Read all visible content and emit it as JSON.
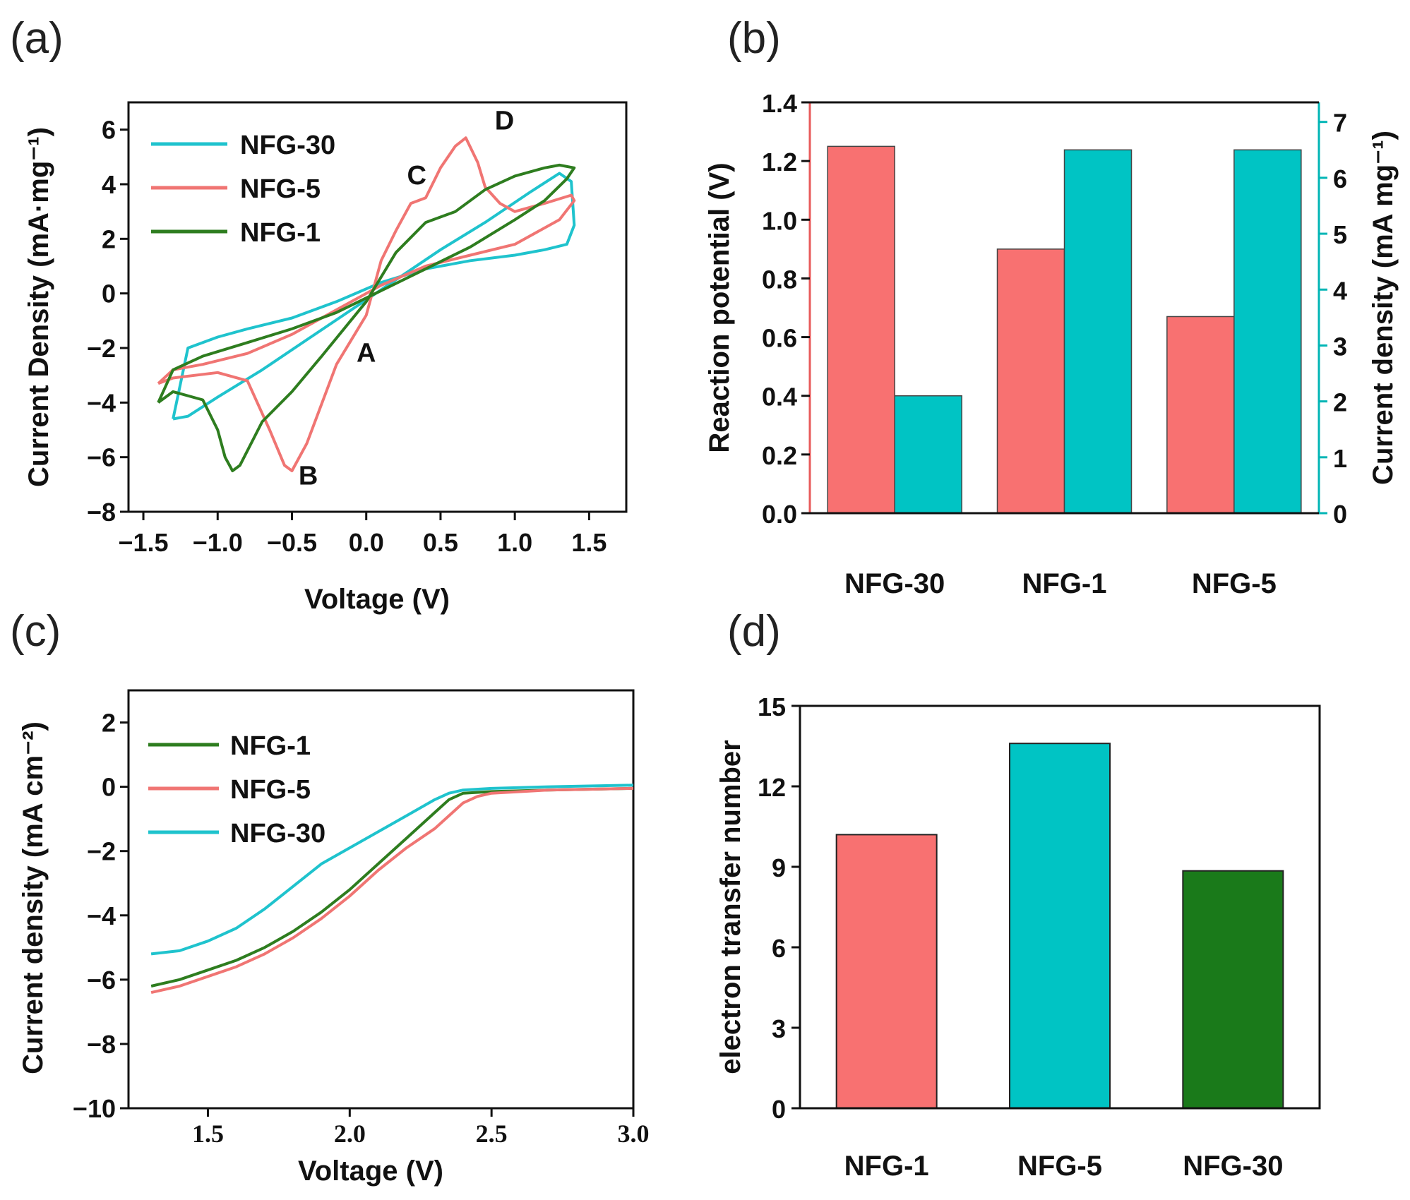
{
  "colors": {
    "cyan": "#1fc3cd",
    "red": "#f07573",
    "green": "#2e7d1f",
    "bar_red": "#f87171",
    "bar_cyan": "#00c4c4",
    "bar_green": "#1a7a1a",
    "axis": "#111111"
  },
  "chart_data": [
    {
      "panel": "(a)",
      "type": "line",
      "xlabel": "Voltage (V)",
      "ylabel": "Current Density (mA·mg⁻¹)",
      "xlim": [
        -1.6,
        1.75
      ],
      "ylim": [
        -8,
        7
      ],
      "xticks": [
        -1.5,
        -1.0,
        -0.5,
        0.0,
        0.5,
        1.0,
        1.5
      ],
      "xtick_labels": [
        "−1.5",
        "−1.0",
        "−0.5",
        "0.0",
        "0.5",
        "1.0",
        "1.5"
      ],
      "yticks": [
        -8,
        -6,
        -4,
        -2,
        0,
        2,
        4,
        6
      ],
      "ytick_labels": [
        "−8",
        "−6",
        "−4",
        "−2",
        "0",
        "2",
        "4",
        "6"
      ],
      "legend": [
        "NFG-30",
        "NFG-5",
        "NFG-1"
      ],
      "annotations": [
        {
          "text": "A",
          "x": 0.0,
          "y": -2.5
        },
        {
          "text": "B",
          "x": -0.39,
          "y": -7.0
        },
        {
          "text": "C",
          "x": 0.34,
          "y": 4.0
        },
        {
          "text": "D",
          "x": 0.93,
          "y": 6.0
        }
      ],
      "series": [
        {
          "name": "NFG-30",
          "color_key": "cyan",
          "x": [
            -1.3,
            -1.2,
            -1.0,
            -0.7,
            -0.4,
            -0.1,
            0.2,
            0.5,
            0.8,
            1.1,
            1.3,
            1.38,
            1.4,
            1.35,
            1.2,
            1.0,
            0.7,
            0.4,
            0.1,
            -0.2,
            -0.5,
            -0.8,
            -1.0,
            -1.2,
            -1.3
          ],
          "y": [
            -4.6,
            -4.5,
            -3.8,
            -2.8,
            -1.7,
            -0.6,
            0.5,
            1.6,
            2.6,
            3.7,
            4.4,
            4.1,
            2.5,
            1.8,
            1.6,
            1.4,
            1.2,
            0.9,
            0.4,
            -0.3,
            -0.9,
            -1.3,
            -1.6,
            -2.0,
            -4.6
          ]
        },
        {
          "name": "NFG-5",
          "color_key": "red",
          "x": [
            -1.4,
            -1.3,
            -1.0,
            -0.8,
            -0.65,
            -0.55,
            -0.5,
            -0.4,
            -0.2,
            0.0,
            0.1,
            0.2,
            0.3,
            0.4,
            0.5,
            0.6,
            0.67,
            0.75,
            0.8,
            0.9,
            1.0,
            1.2,
            1.38,
            1.4,
            1.3,
            1.0,
            0.7,
            0.4,
            0.1,
            -0.2,
            -0.5,
            -0.8,
            -1.1,
            -1.3,
            -1.4
          ],
          "y": [
            -3.3,
            -3.1,
            -2.9,
            -3.2,
            -5.0,
            -6.3,
            -6.5,
            -5.5,
            -2.6,
            -0.8,
            1.2,
            2.3,
            3.3,
            3.5,
            4.6,
            5.4,
            5.7,
            4.8,
            3.9,
            3.3,
            3.0,
            3.3,
            3.6,
            3.4,
            2.7,
            1.8,
            1.4,
            1.0,
            0.3,
            -0.6,
            -1.5,
            -2.2,
            -2.6,
            -2.8,
            -3.3
          ]
        },
        {
          "name": "NFG-1",
          "color_key": "green",
          "x": [
            -1.4,
            -1.3,
            -1.1,
            -1.0,
            -0.95,
            -0.9,
            -0.85,
            -0.7,
            -0.5,
            -0.3,
            0.0,
            0.2,
            0.4,
            0.6,
            0.8,
            1.0,
            1.2,
            1.3,
            1.4,
            1.35,
            1.2,
            1.0,
            0.7,
            0.4,
            0.1,
            -0.2,
            -0.5,
            -0.8,
            -1.1,
            -1.3,
            -1.4
          ],
          "y": [
            -4.0,
            -3.6,
            -3.9,
            -5.0,
            -6.0,
            -6.5,
            -6.3,
            -4.7,
            -3.6,
            -2.3,
            -0.3,
            1.5,
            2.6,
            3.0,
            3.8,
            4.3,
            4.6,
            4.7,
            4.6,
            4.2,
            3.4,
            2.7,
            1.7,
            0.9,
            0.1,
            -0.7,
            -1.3,
            -1.8,
            -2.3,
            -2.8,
            -4.0
          ]
        }
      ]
    },
    {
      "panel": "(b)",
      "type": "bar",
      "categories": [
        "NFG-30",
        "NFG-1",
        "NFG-5"
      ],
      "ylabel": "Reaction potential (V)",
      "y2label": "Current density (mA mg⁻¹)",
      "ylim": [
        0,
        1.4
      ],
      "y2lim": [
        0,
        7.35
      ],
      "yticks": [
        0.0,
        0.2,
        0.4,
        0.6,
        0.8,
        1.0,
        1.2,
        1.4
      ],
      "ytick_labels": [
        "0.0",
        "0.2",
        "0.4",
        "0.6",
        "0.8",
        "1.0",
        "1.2",
        "1.4"
      ],
      "y2ticks": [
        0,
        1,
        2,
        3,
        4,
        5,
        6,
        7
      ],
      "y2tick_labels": [
        "0",
        "1",
        "2",
        "3",
        "4",
        "5",
        "6",
        "7"
      ],
      "series": [
        {
          "name": "Reaction potential",
          "axis": "left",
          "color_key": "bar_red",
          "values": [
            1.25,
            0.9,
            0.67
          ]
        },
        {
          "name": "Current density",
          "axis": "right",
          "color_key": "bar_cyan",
          "values": [
            2.1,
            6.5,
            6.5
          ]
        }
      ]
    },
    {
      "panel": "(c)",
      "type": "line",
      "xlabel": "Voltage (V)",
      "ylabel": "Current density (mA cm⁻²)",
      "xlim": [
        1.22,
        3.0
      ],
      "ylim": [
        -10,
        3
      ],
      "xticks": [
        1.5,
        2.0,
        2.5,
        3.0
      ],
      "xtick_labels": [
        "1.5",
        "2.0",
        "2.5",
        "3.0"
      ],
      "yticks": [
        -10,
        -8,
        -6,
        -4,
        -2,
        0,
        2
      ],
      "ytick_labels": [
        "−10",
        "−8",
        "−6",
        "−4",
        "−2",
        "0",
        "2"
      ],
      "legend": [
        "NFG-1",
        "NFG-5",
        "NFG-30"
      ],
      "series": [
        {
          "name": "NFG-1",
          "color_key": "green",
          "x": [
            1.3,
            1.4,
            1.5,
            1.6,
            1.7,
            1.8,
            1.9,
            2.0,
            2.1,
            2.2,
            2.3,
            2.35,
            2.4,
            2.5,
            2.7,
            3.0
          ],
          "y": [
            -6.2,
            -6.0,
            -5.7,
            -5.4,
            -5.0,
            -4.5,
            -3.9,
            -3.2,
            -2.4,
            -1.6,
            -0.8,
            -0.4,
            -0.2,
            -0.15,
            -0.1,
            -0.05
          ]
        },
        {
          "name": "NFG-5",
          "color_key": "red",
          "x": [
            1.3,
            1.4,
            1.5,
            1.6,
            1.7,
            1.8,
            1.9,
            2.0,
            2.1,
            2.2,
            2.3,
            2.35,
            2.4,
            2.45,
            2.5,
            2.7,
            3.0
          ],
          "y": [
            -6.4,
            -6.2,
            -5.9,
            -5.6,
            -5.2,
            -4.7,
            -4.1,
            -3.4,
            -2.6,
            -1.9,
            -1.3,
            -0.9,
            -0.5,
            -0.3,
            -0.2,
            -0.1,
            -0.05
          ]
        },
        {
          "name": "NFG-30",
          "color_key": "cyan",
          "x": [
            1.3,
            1.4,
            1.5,
            1.6,
            1.7,
            1.8,
            1.9,
            2.0,
            2.1,
            2.2,
            2.3,
            2.35,
            2.4,
            2.5,
            2.7,
            3.0
          ],
          "y": [
            -5.2,
            -5.1,
            -4.8,
            -4.4,
            -3.8,
            -3.1,
            -2.4,
            -1.9,
            -1.4,
            -0.9,
            -0.4,
            -0.2,
            -0.1,
            -0.05,
            0.0,
            0.05
          ]
        }
      ]
    },
    {
      "panel": "(d)",
      "type": "bar",
      "categories": [
        "NFG-1",
        "NFG-5",
        "NFG-30"
      ],
      "ylabel": "electron transfer number",
      "ylim": [
        0,
        15
      ],
      "yticks": [
        0,
        3,
        6,
        9,
        12,
        15
      ],
      "ytick_labels": [
        "0",
        "3",
        "6",
        "9",
        "12",
        "15"
      ],
      "values": [
        10.2,
        13.6,
        8.85
      ],
      "bar_color_keys": [
        "bar_red",
        "bar_cyan",
        "bar_green"
      ]
    }
  ]
}
